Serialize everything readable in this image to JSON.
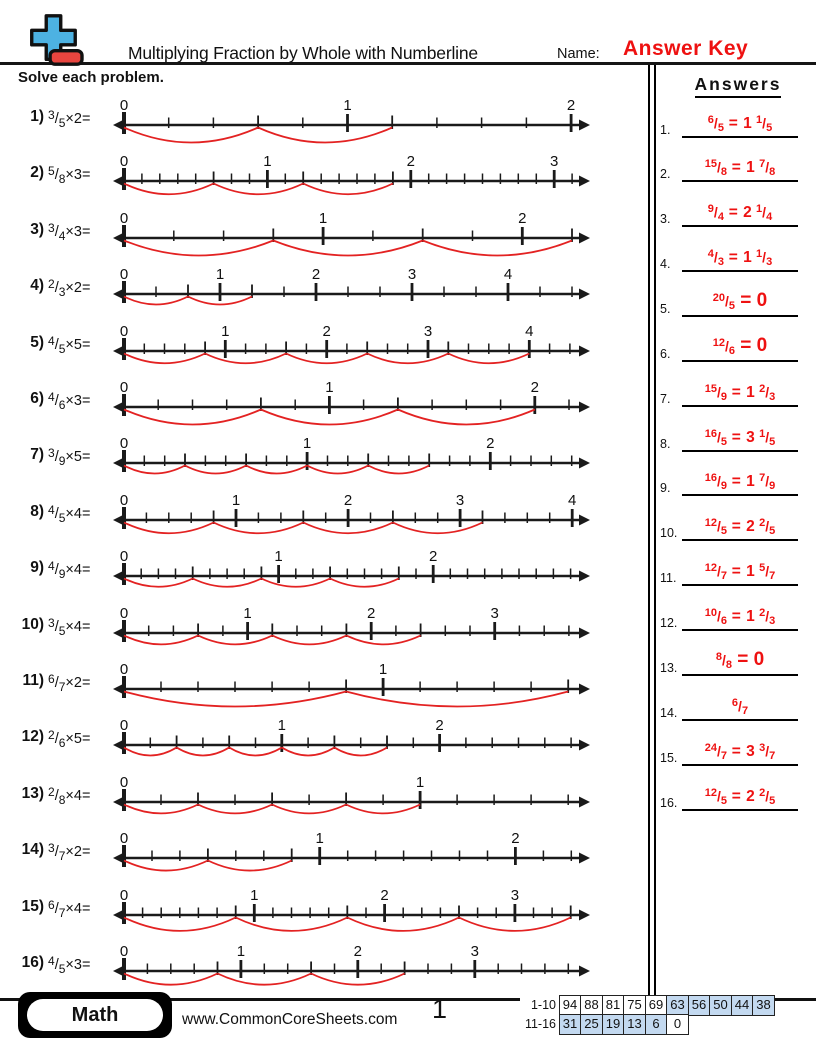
{
  "header": {
    "title": "Multiplying Fraction by Whole with Numberline",
    "name_label": "Name:",
    "name_value": "Answer Key",
    "logo_icon": "plus-minus-math-logo"
  },
  "instructions": "Solve each problem.",
  "answers_panel": {
    "heading": "Answers",
    "items": [
      {
        "label": "1.",
        "num": "6",
        "den": "5",
        "whole": "1",
        "fnum": "1",
        "fden": "5"
      },
      {
        "label": "2.",
        "num": "15",
        "den": "8",
        "whole": "1",
        "fnum": "7",
        "fden": "8"
      },
      {
        "label": "3.",
        "num": "9",
        "den": "4",
        "whole": "2",
        "fnum": "1",
        "fden": "4"
      },
      {
        "label": "4.",
        "num": "4",
        "den": "3",
        "whole": "1",
        "fnum": "1",
        "fden": "3"
      },
      {
        "label": "5.",
        "num": "20",
        "den": "5",
        "whole": "0",
        "fnum": null,
        "fden": null
      },
      {
        "label": "6.",
        "num": "12",
        "den": "6",
        "whole": "0",
        "fnum": null,
        "fden": null
      },
      {
        "label": "7.",
        "num": "15",
        "den": "9",
        "whole": "1",
        "fnum": "2",
        "fden": "3"
      },
      {
        "label": "8.",
        "num": "16",
        "den": "5",
        "whole": "3",
        "fnum": "1",
        "fden": "5"
      },
      {
        "label": "9.",
        "num": "16",
        "den": "9",
        "whole": "1",
        "fnum": "7",
        "fden": "9"
      },
      {
        "label": "10.",
        "num": "12",
        "den": "5",
        "whole": "2",
        "fnum": "2",
        "fden": "5"
      },
      {
        "label": "11.",
        "num": "12",
        "den": "7",
        "whole": "1",
        "fnum": "5",
        "fden": "7"
      },
      {
        "label": "12.",
        "num": "10",
        "den": "6",
        "whole": "1",
        "fnum": "2",
        "fden": "3"
      },
      {
        "label": "13.",
        "num": "8",
        "den": "8",
        "whole": "0",
        "fnum": null,
        "fden": null
      },
      {
        "label": "14.",
        "num": "6",
        "den": "7",
        "whole": null,
        "fnum": null,
        "fden": null
      },
      {
        "label": "15.",
        "num": "24",
        "den": "7",
        "whole": "3",
        "fnum": "3",
        "fden": "7"
      },
      {
        "label": "16.",
        "num": "12",
        "den": "5",
        "whole": "2",
        "fnum": "2",
        "fden": "5"
      }
    ]
  },
  "problems": [
    {
      "label": "1)",
      "numerator": 3,
      "denominator": 5,
      "multiplier": 2,
      "max_label": 2,
      "span": 2.04
    },
    {
      "label": "2)",
      "numerator": 5,
      "denominator": 8,
      "multiplier": 3,
      "max_label": 3,
      "span": 3.18
    },
    {
      "label": "3)",
      "numerator": 3,
      "denominator": 4,
      "multiplier": 3,
      "max_label": 2,
      "span": 2.29
    },
    {
      "label": "4)",
      "numerator": 2,
      "denominator": 3,
      "multiplier": 2,
      "max_label": 4,
      "span": 4.75
    },
    {
      "label": "5)",
      "numerator": 4,
      "denominator": 5,
      "multiplier": 5,
      "max_label": 4,
      "span": 4.5
    },
    {
      "label": "6)",
      "numerator": 4,
      "denominator": 6,
      "multiplier": 3,
      "max_label": 2,
      "span": 2.22
    },
    {
      "label": "7)",
      "numerator": 3,
      "denominator": 9,
      "multiplier": 5,
      "max_label": 2,
      "span": 2.49
    },
    {
      "label": "8)",
      "numerator": 4,
      "denominator": 5,
      "multiplier": 4,
      "max_label": 4,
      "span": 4.07
    },
    {
      "label": "9)",
      "numerator": 4,
      "denominator": 9,
      "multiplier": 4,
      "max_label": 2,
      "span": 2.95
    },
    {
      "label": "10)",
      "numerator": 3,
      "denominator": 5,
      "multiplier": 4,
      "max_label": 3,
      "span": 3.69
    },
    {
      "label": "11)",
      "numerator": 6,
      "denominator": 7,
      "multiplier": 2,
      "max_label": 1,
      "span": 1.76
    },
    {
      "label": "12)",
      "numerator": 2,
      "denominator": 6,
      "multiplier": 5,
      "max_label": 2,
      "span": 2.89
    },
    {
      "label": "13)",
      "numerator": 2,
      "denominator": 8,
      "multiplier": 4,
      "max_label": 1,
      "span": 1.54
    },
    {
      "label": "14)",
      "numerator": 3,
      "denominator": 7,
      "multiplier": 2,
      "max_label": 2,
      "span": 2.33
    },
    {
      "label": "15)",
      "numerator": 6,
      "denominator": 7,
      "multiplier": 4,
      "max_label": 3,
      "span": 3.5
    },
    {
      "label": "16)",
      "numerator": 4,
      "denominator": 5,
      "multiplier": 3,
      "max_label": 3,
      "span": 3.9
    }
  ],
  "footer": {
    "subject": "Math",
    "website": "www.CommonCoreSheets.com",
    "page_number": "1",
    "score_table": {
      "rows": [
        {
          "label": "1-10",
          "cells": [
            {
              "score": "94",
              "shaded": false
            },
            {
              "score": "88",
              "shaded": false
            },
            {
              "score": "81",
              "shaded": false
            },
            {
              "score": "75",
              "shaded": false
            },
            {
              "score": "69",
              "shaded": false
            },
            {
              "score": "63",
              "shaded": true
            },
            {
              "score": "56",
              "shaded": true
            },
            {
              "score": "50",
              "shaded": true
            },
            {
              "score": "44",
              "shaded": true
            },
            {
              "score": "38",
              "shaded": true
            }
          ]
        },
        {
          "label": "11-16",
          "cells": [
            {
              "score": "31",
              "shaded": true
            },
            {
              "score": "25",
              "shaded": true
            },
            {
              "score": "19",
              "shaded": true
            },
            {
              "score": "13",
              "shaded": true
            },
            {
              "score": "6",
              "shaded": true
            },
            {
              "score": "0",
              "shaded": false
            }
          ]
        }
      ]
    }
  },
  "colors": {
    "answer_red": "#ee1111",
    "arc_red": "#e32222",
    "line_black": "#1a1a1a",
    "logo_blue": "#4db2e2",
    "logo_red": "#e8453f",
    "cell_blue": "#c3d9f0"
  }
}
